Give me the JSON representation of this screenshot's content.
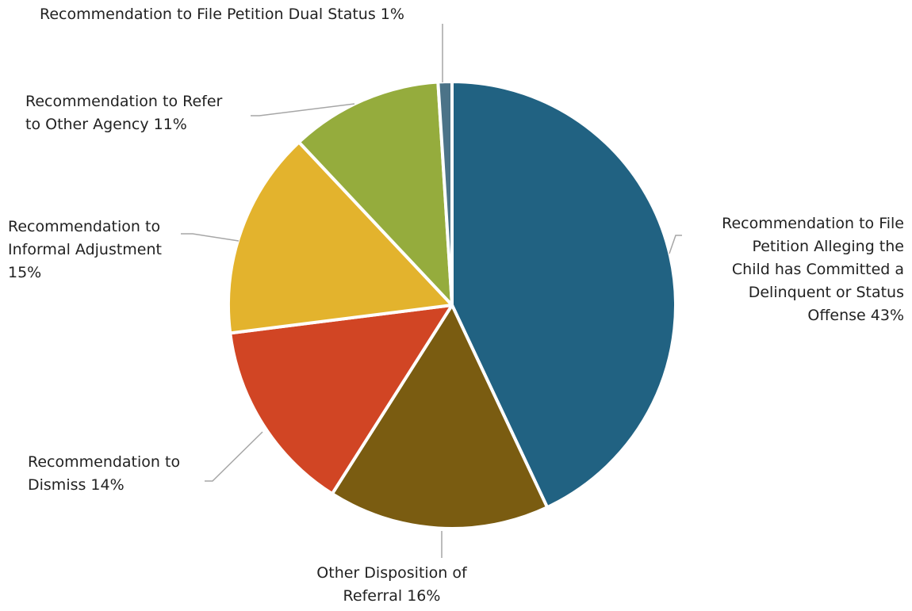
{
  "chart_data": {
    "type": "pie",
    "title": "",
    "slices": [
      {
        "label_lines": [
          "Recommendation to File",
          "Petition Alleging the",
          "Child has Committed a",
          "Delinquent or Status",
          "Offense 43%"
        ],
        "value": 43,
        "color": "#216282"
      },
      {
        "label_lines": [
          "Other Disposition of",
          "Referral 16%"
        ],
        "value": 16,
        "color": "#7a5c11"
      },
      {
        "label_lines": [
          "Recommendation to",
          "Dismiss 14%"
        ],
        "value": 14,
        "color": "#d14524"
      },
      {
        "label_lines": [
          "Recommendation to",
          "Informal Adjustment",
          "15%"
        ],
        "value": 15,
        "color": "#e3b32d"
      },
      {
        "label_lines": [
          "Recommendation to Refer",
          "to Other Agency 11%"
        ],
        "value": 11,
        "color": "#95ac3d"
      },
      {
        "label_lines": [
          "Recommendation to File Petition Dual Status 1%"
        ],
        "value": 1,
        "color": "#4b7388"
      }
    ],
    "start_angle_deg": 0,
    "direction": "clockwise",
    "legend": "none",
    "leader_line_color": "#a6a6a6"
  }
}
